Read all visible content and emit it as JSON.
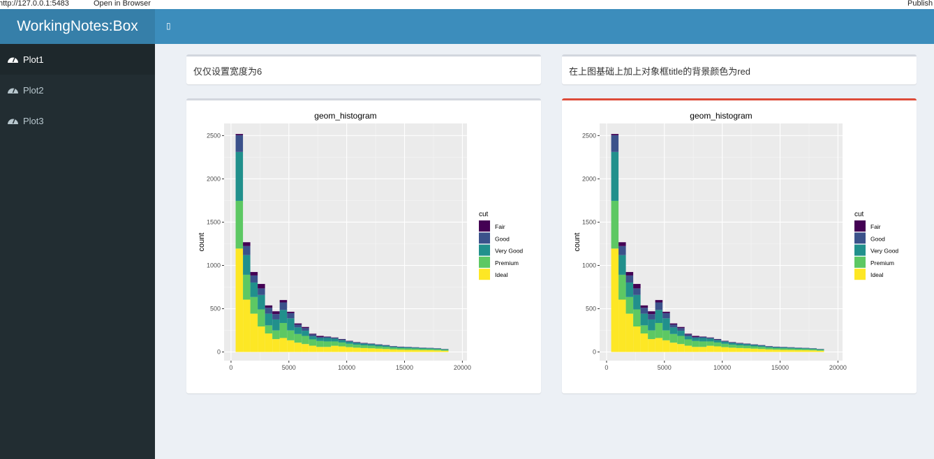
{
  "browser": {
    "url": "http://127.0.0.1:5483",
    "open_label": "Open in Browser",
    "publish_label": "Publish"
  },
  "header": {
    "title": "WorkingNotes:Box",
    "toggle_icon": "▯"
  },
  "sidebar": {
    "items": [
      {
        "label": "Plot1",
        "icon": "dashboard-icon",
        "active": true
      },
      {
        "label": "Plot2",
        "icon": "dashboard-icon"
      },
      {
        "label": "Plot3",
        "icon": "dashboard-icon"
      }
    ]
  },
  "boxes": {
    "left_title": "仅仅设置宽度为6",
    "right_title": "在上图基础上加上对象框title的背景颜色为red"
  },
  "colors": {
    "header": "#3c8dbc",
    "sidebar": "#222d32",
    "box_status_red": "#dd4b39"
  },
  "chart_data": [
    {
      "type": "bar",
      "stacked": true,
      "title": "geom_histogram",
      "xlabel": "",
      "ylabel": "count",
      "xlim": [
        -600,
        20400
      ],
      "ylim": [
        -100,
        2640
      ],
      "grid": true,
      "x_ticks": [
        "0",
        "5000",
        "10000",
        "15000",
        "20000"
      ],
      "y_ticks": [
        "0",
        "500",
        "1000",
        "1500",
        "2000",
        "2500"
      ],
      "legend_title": "cut",
      "legend_position": "right",
      "bin_start": 400,
      "binwidth": 634.5,
      "series": [
        {
          "name": "Fair",
          "color": "#440154",
          "values": [
            14,
            44,
            40,
            51,
            27,
            32,
            27,
            16,
            14,
            13,
            8,
            13,
            4,
            4,
            4,
            3,
            3,
            3,
            2,
            2,
            2,
            2,
            2,
            1,
            1,
            1,
            1,
            1,
            1
          ]
        },
        {
          "name": "Good",
          "color": "#3b528b",
          "values": [
            194,
            105,
            81,
            76,
            68,
            62,
            87,
            60,
            32,
            30,
            22,
            11,
            12,
            10,
            9,
            8,
            7,
            6,
            6,
            5,
            5,
            4,
            4,
            4,
            4,
            3,
            3,
            3,
            2
          ]
        },
        {
          "name": "Very Good",
          "color": "#21908c",
          "values": [
            565,
            227,
            168,
            167,
            135,
            127,
            151,
            140,
            76,
            60,
            35,
            35,
            40,
            32,
            27,
            24,
            21,
            19,
            18,
            16,
            14,
            12,
            11,
            11,
            10,
            9,
            9,
            8,
            7
          ]
        },
        {
          "name": "Premium",
          "color": "#5dc863",
          "values": [
            551,
            287,
            192,
            197,
            94,
            100,
            173,
            114,
            100,
            94,
            73,
            68,
            63,
            50,
            45,
            39,
            34,
            31,
            29,
            26,
            24,
            20,
            18,
            17,
            16,
            15,
            14,
            13,
            10
          ]
        },
        {
          "name": "Ideal",
          "color": "#fde725",
          "values": [
            1195,
            605,
            443,
            295,
            214,
            149,
            162,
            135,
            108,
            92,
            73,
            59,
            59,
            72,
            65,
            56,
            50,
            46,
            43,
            39,
            35,
            30,
            27,
            25,
            24,
            22,
            21,
            19,
            15
          ]
        }
      ]
    }
  ]
}
